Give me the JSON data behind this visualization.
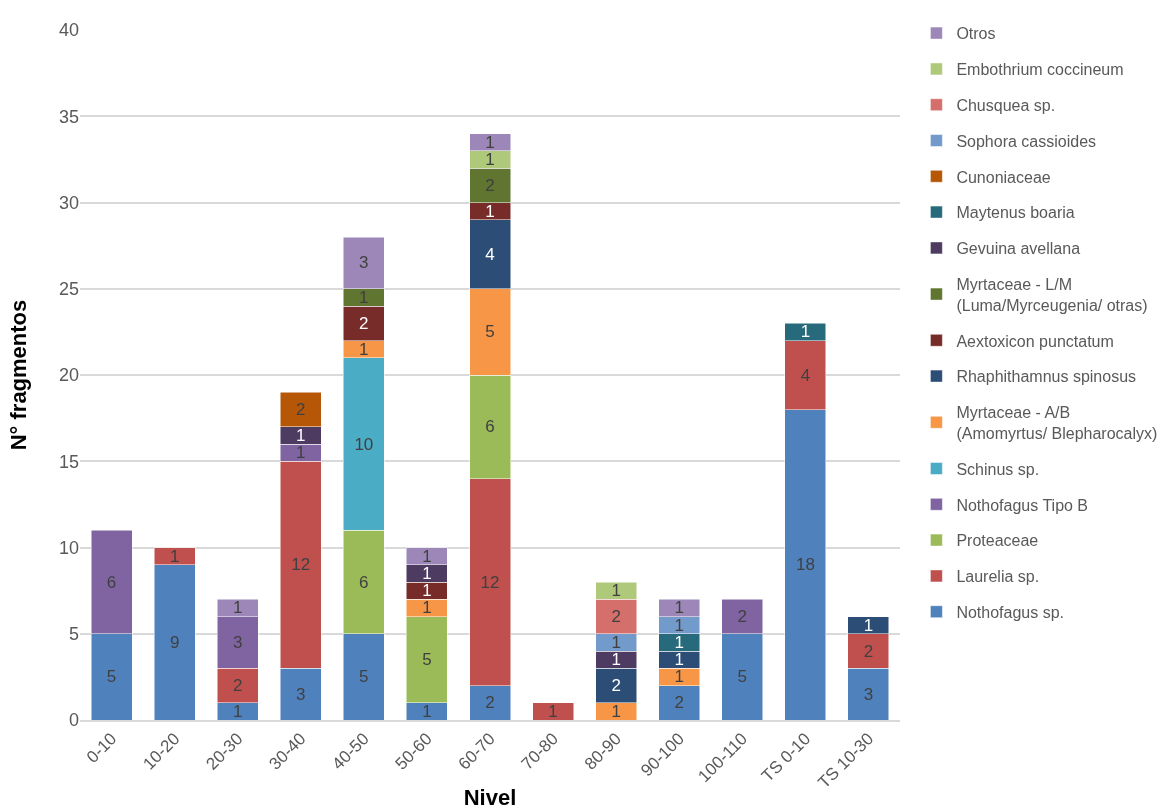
{
  "chart_data": {
    "type": "bar",
    "stacked": true,
    "xlabel": "Nivel",
    "ylabel": "N° fragmentos",
    "categories": [
      "0-10",
      "10-20",
      "20-30",
      "30-40",
      "40-50",
      "50-60",
      "60-70",
      "70-80",
      "80-90",
      "90-100",
      "100-110",
      "TS 0-10",
      "TS 10-30"
    ],
    "ylim": [
      0,
      40
    ],
    "yticks": [
      0,
      5,
      10,
      15,
      20,
      25,
      30,
      35,
      40
    ],
    "grid": "y",
    "legend": "right",
    "data_labels": true,
    "series": [
      {
        "name": "Nothofagus sp.",
        "color": "#4f81bd",
        "values": [
          5,
          9,
          1,
          3,
          5,
          1,
          2,
          null,
          null,
          2,
          5,
          18,
          3
        ]
      },
      {
        "name": "Laurelia sp.",
        "color": "#c0504d",
        "values": [
          null,
          1,
          2,
          12,
          null,
          null,
          12,
          1,
          null,
          null,
          null,
          4,
          2
        ]
      },
      {
        "name": "Proteaceae",
        "color": "#9bbb59",
        "values": [
          null,
          null,
          null,
          null,
          6,
          5,
          6,
          null,
          null,
          null,
          null,
          null,
          null
        ]
      },
      {
        "name": "Nothofagus Tipo B",
        "color": "#8064a2",
        "values": [
          6,
          null,
          3,
          1,
          null,
          null,
          null,
          null,
          null,
          null,
          2,
          null,
          null
        ]
      },
      {
        "name": "Schinus sp.",
        "color": "#4bacc6",
        "values": [
          null,
          null,
          null,
          null,
          10,
          null,
          null,
          null,
          null,
          null,
          null,
          null,
          null
        ]
      },
      {
        "name": "Myrtaceae - A/B (Amomyrtus/ Blepharocalyx)",
        "color": "#f79646",
        "values": [
          null,
          null,
          null,
          null,
          1,
          1,
          5,
          null,
          1,
          1,
          null,
          null,
          null
        ]
      },
      {
        "name": "Rhaphithamnus spinosus",
        "color": "#2c4d75",
        "values": [
          null,
          null,
          null,
          null,
          null,
          null,
          4,
          null,
          2,
          1,
          null,
          null,
          1
        ]
      },
      {
        "name": "Aextoxicon punctatum",
        "color": "#772c2a",
        "values": [
          null,
          null,
          null,
          null,
          2,
          1,
          1,
          null,
          null,
          null,
          null,
          null,
          null
        ]
      },
      {
        "name": "Myrtaceae - L/M (Luma/Myrceugenia/ otras)",
        "color": "#5f7530",
        "values": [
          null,
          null,
          null,
          null,
          1,
          null,
          2,
          null,
          null,
          null,
          null,
          null,
          null
        ]
      },
      {
        "name": "Gevuina avellana",
        "color": "#4d3b62",
        "values": [
          null,
          null,
          null,
          1,
          null,
          1,
          null,
          null,
          1,
          null,
          null,
          null,
          null
        ]
      },
      {
        "name": "Maytenus boaria",
        "color": "#276a7c",
        "values": [
          null,
          null,
          null,
          null,
          null,
          null,
          null,
          null,
          null,
          1,
          null,
          1,
          null
        ]
      },
      {
        "name": "Cunoniaceae",
        "color": "#b65708",
        "values": [
          null,
          null,
          null,
          2,
          null,
          null,
          null,
          null,
          null,
          null,
          null,
          null,
          null
        ]
      },
      {
        "name": "Sophora cassioides",
        "color": "#729aca",
        "values": [
          null,
          null,
          null,
          null,
          null,
          null,
          null,
          null,
          1,
          1,
          null,
          null,
          null
        ]
      },
      {
        "name": "Chusquea sp.",
        "color": "#d46f6c",
        "values": [
          null,
          null,
          null,
          null,
          null,
          null,
          null,
          null,
          2,
          null,
          null,
          null,
          null
        ]
      },
      {
        "name": "Embothrium coccineum",
        "color": "#afc97a",
        "values": [
          null,
          null,
          null,
          null,
          null,
          null,
          1,
          null,
          1,
          null,
          null,
          null,
          null
        ]
      },
      {
        "name": "Otros",
        "color": "#9c87b8",
        "values": [
          null,
          null,
          1,
          null,
          3,
          1,
          1,
          null,
          null,
          1,
          null,
          null,
          null
        ]
      }
    ]
  }
}
